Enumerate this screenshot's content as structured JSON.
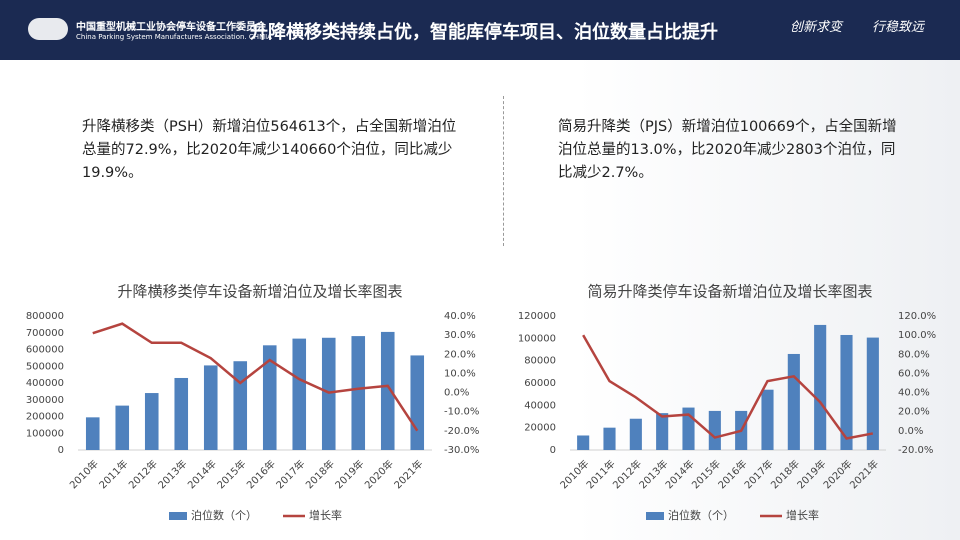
{
  "header": {
    "org_cn": "中国重型机械工业协会停车设备工作委员会",
    "org_en": "China Parking System Manufactures Association. CHMIA",
    "title": "升降横移类持续占优，智能库停车项目、泊位数量占比提升",
    "slogan_1": "创新求变",
    "slogan_2": "行稳致远"
  },
  "paragraphs": [
    "升降横移类（PSH）新增泊位564613个，占全国新增泊位总量的72.9%，比2020年减少140660个泊位，同比减少19.9%。",
    "简易升降类（PJS）新增泊位100669个，占全国新增泊位总量的13.0%，比2020年减少2803个泊位，同比减少2.7%。"
  ],
  "chart_data": [
    {
      "type": "bar-line",
      "title": "升降横移类停车设备新增泊位及增长率图表",
      "categories": [
        "2010年",
        "2011年",
        "2012年",
        "2013年",
        "2014年",
        "2015年",
        "2016年",
        "2017年",
        "2018年",
        "2019年",
        "2020年",
        "2021年"
      ],
      "series": [
        {
          "name": "泊位数（个）",
          "color": "#4f81bd",
          "values": [
            195000,
            265000,
            340000,
            430000,
            505000,
            530000,
            625000,
            665000,
            670000,
            680000,
            705000,
            564613
          ]
        },
        {
          "name": "增长率",
          "color": "#b5443f",
          "axis": "y2",
          "values": [
            31,
            36,
            26,
            26,
            18,
            5,
            17,
            7,
            0,
            2,
            3.5,
            -19.9
          ]
        }
      ],
      "ylim": [
        0,
        800000
      ],
      "yticks": [
        0,
        100000,
        200000,
        300000,
        400000,
        500000,
        600000,
        700000,
        800000
      ],
      "y2lim": [
        -30,
        40
      ],
      "y2ticks": [
        {
          "value": -30,
          "label": "-30.0%"
        },
        {
          "value": -20,
          "label": "-20.0%"
        },
        {
          "value": -10,
          "label": "-10.0%"
        },
        {
          "value": 0,
          "label": "0.0%"
        },
        {
          "value": 10,
          "label": "10.0%"
        },
        {
          "value": 20,
          "label": "20.0%"
        },
        {
          "value": 30,
          "label": "30.0%"
        },
        {
          "value": 40,
          "label": "40.0%"
        }
      ],
      "legend": "bottom"
    },
    {
      "type": "bar-line",
      "title": "简易升降类停车设备新增泊位及增长率图表",
      "categories": [
        "2010年",
        "2011年",
        "2012年",
        "2013年",
        "2014年",
        "2015年",
        "2016年",
        "2017年",
        "2018年",
        "2019年",
        "2020年",
        "2021年"
      ],
      "series": [
        {
          "name": "泊位数（个）",
          "color": "#4f81bd",
          "values": [
            13000,
            20000,
            28000,
            33000,
            38000,
            35000,
            35000,
            54000,
            86000,
            112000,
            103000,
            100669
          ]
        },
        {
          "name": "增长率",
          "color": "#b5443f",
          "axis": "y2",
          "values": [
            100,
            52,
            35,
            15,
            17,
            -7,
            0,
            52,
            57,
            30,
            -8,
            -2.7
          ]
        }
      ],
      "ylim": [
        0,
        120000
      ],
      "yticks": [
        0,
        20000,
        40000,
        60000,
        80000,
        100000,
        120000
      ],
      "y2lim": [
        -20,
        120
      ],
      "y2ticks": [
        {
          "value": -20,
          "label": "-20.0%"
        },
        {
          "value": 0,
          "label": "0.0%"
        },
        {
          "value": 20,
          "label": "20.0%"
        },
        {
          "value": 40,
          "label": "40.0%"
        },
        {
          "value": 60,
          "label": "60.0%"
        },
        {
          "value": 80,
          "label": "80.0%"
        },
        {
          "value": 100,
          "label": "100.0%"
        },
        {
          "value": 120,
          "label": "120.0%"
        }
      ],
      "legend": "bottom"
    }
  ]
}
